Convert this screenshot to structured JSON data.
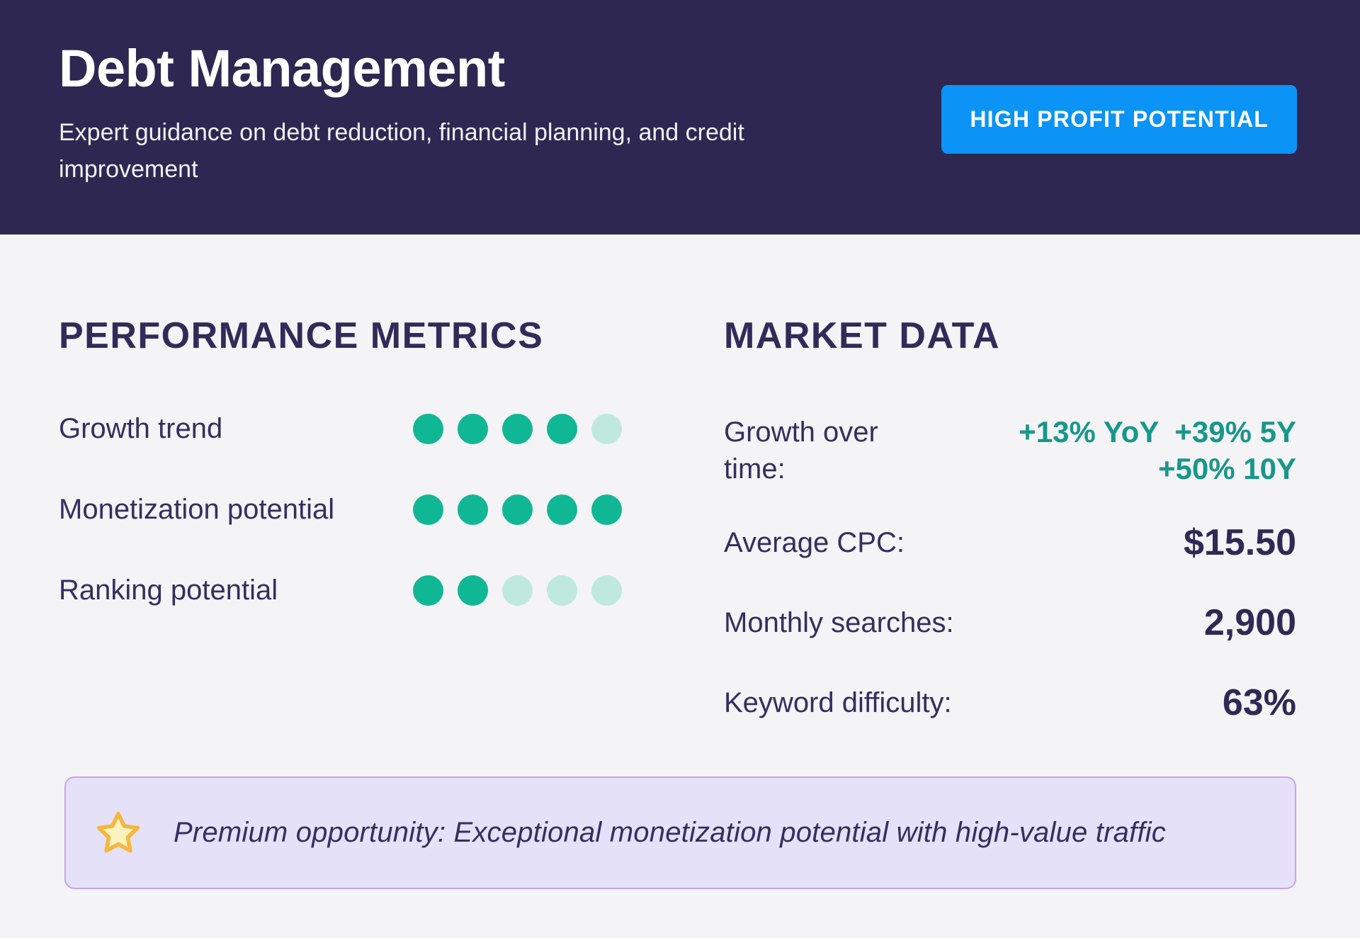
{
  "header": {
    "title": "Debt Management",
    "subtitle": "Expert guidance on debt reduction, financial planning, and credit improvement",
    "badge": "HIGH PROFIT POTENTIAL"
  },
  "performance": {
    "heading": "PERFORMANCE METRICS",
    "max_dots": 5,
    "metrics": [
      {
        "label": "Growth trend",
        "filled": 4
      },
      {
        "label": "Monetization potential",
        "filled": 5
      },
      {
        "label": "Ranking potential",
        "filled": 2
      }
    ]
  },
  "market": {
    "heading": "MARKET DATA",
    "growth": {
      "label": "Growth over time:",
      "values": [
        "+13% YoY",
        "+39% 5Y",
        "+50% 10Y"
      ]
    },
    "rows": [
      {
        "label": "Average CPC:",
        "value": "$15.50"
      },
      {
        "label": "Monthly searches:",
        "value": "2,900"
      },
      {
        "label": "Keyword difficulty:",
        "value": "63%"
      }
    ]
  },
  "banner": {
    "icon": "star-icon",
    "text": "Premium opportunity: Exceptional monetization potential with high-value traffic"
  },
  "colors": {
    "header_bg": "#2d2751",
    "page_bg": "#f4f3f5",
    "badge_bg": "#0b93f5",
    "heading_text": "#322b59",
    "label_text": "#352e60",
    "value_text": "#2f2955",
    "teal_text": "#17978b",
    "dot_filled": "#10b795",
    "dot_empty": "#c0e9dd",
    "banner_bg": "#e5e1f8",
    "banner_border": "#c7a4ee",
    "banner_text": "#352e60",
    "star_fill": "#fbf2bd",
    "star_stroke": "#f6b73e"
  }
}
